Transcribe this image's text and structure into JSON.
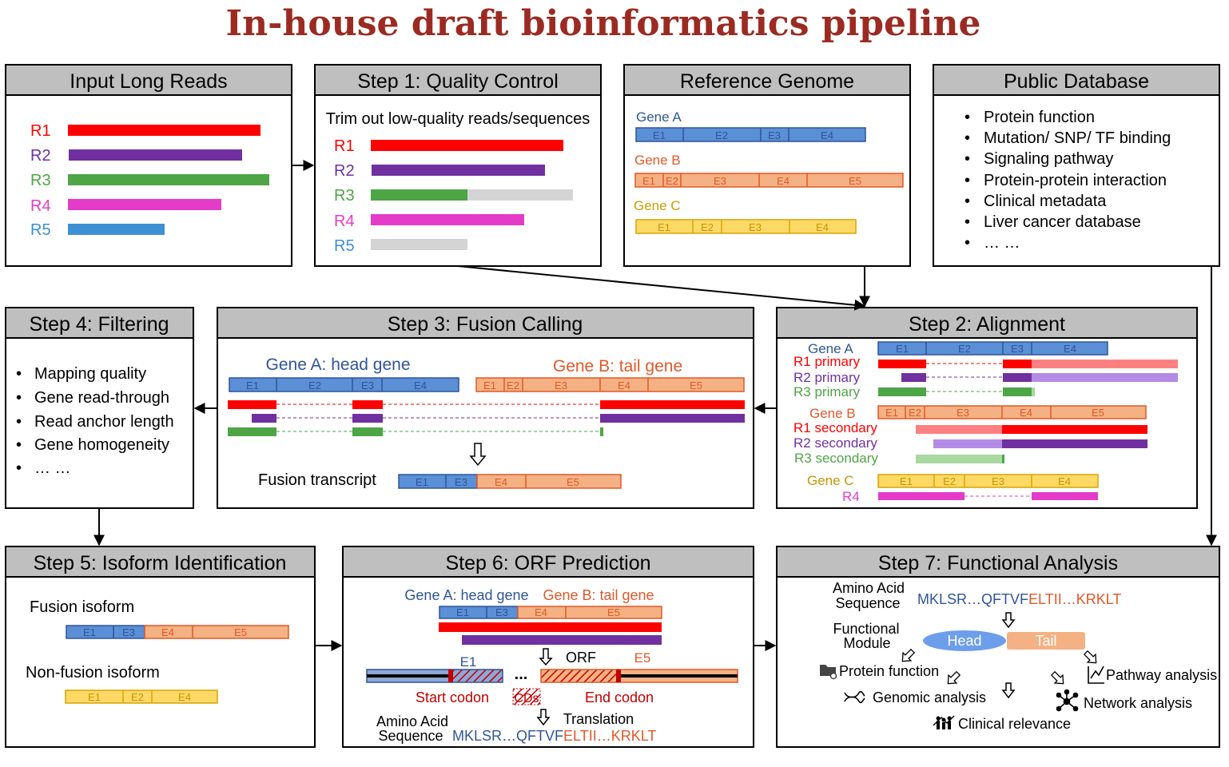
{
  "title": "In-house draft bioinformatics pipeline",
  "colors": {
    "title": "#9b2b22",
    "header_bg": "#bfbfbf",
    "red": "#ff0000",
    "purple": "#7030a0",
    "green": "#4ea546",
    "magenta": "#e43cc8",
    "blue": "#3f8fd4",
    "gray": "#d4d4d4",
    "geneA_fill": "#5b8fd6",
    "geneA_stroke": "#2f5597",
    "geneB_fill": "#f4b183",
    "geneB_stroke": "#e0592a",
    "geneC_fill": "#ffd966",
    "geneC_stroke": "#d9a400"
  },
  "boxes": {
    "input": {
      "header": "Input Long Reads",
      "reads": [
        "R1",
        "R2",
        "R3",
        "R4",
        "R5"
      ]
    },
    "qc": {
      "header": "Step 1: Quality Control",
      "subtitle": "Trim out low-quality reads/sequences",
      "reads": [
        "R1",
        "R2",
        "R3",
        "R4",
        "R5"
      ]
    },
    "ref": {
      "header": "Reference Genome",
      "genes": [
        {
          "name": "Gene A",
          "exons": [
            "E1",
            "E2",
            "E3",
            "E4"
          ]
        },
        {
          "name": "Gene B",
          "exons": [
            "E1",
            "E2",
            "E3",
            "E4",
            "E5"
          ]
        },
        {
          "name": "Gene C",
          "exons": [
            "E1",
            "E2",
            "E3",
            "E4"
          ]
        }
      ]
    },
    "db": {
      "header": "Public Database",
      "items": [
        "Protein function",
        "Mutation/ SNP/ TF binding",
        "Signaling pathway",
        "Protein-protein interaction",
        "Clinical metadata",
        "Liver cancer database",
        "… …"
      ]
    },
    "filter": {
      "header": "Step 4: Filtering",
      "items": [
        "Mapping quality",
        "Gene read-through",
        "Read anchor length",
        "Gene homogeneity",
        "… …"
      ]
    },
    "fusion": {
      "header": "Step 3: Fusion Calling",
      "head_label": "Gene A: head gene",
      "tail_label": "Gene B: tail gene",
      "head_exons": [
        "E1",
        "E2",
        "E3",
        "E4"
      ],
      "tail_exons": [
        "E1",
        "E2",
        "E3",
        "E4",
        "E5"
      ],
      "transcript_label": "Fusion transcript",
      "transcript_exons": [
        "E1",
        "E3",
        "E4",
        "E5"
      ]
    },
    "align": {
      "header": "Step 2: Alignment",
      "geneA": "Gene A",
      "geneB": "Gene B",
      "geneC": "Gene C",
      "geneA_exons": [
        "E1",
        "E2",
        "E3",
        "E4"
      ],
      "geneB_exons": [
        "E1",
        "E2",
        "E3",
        "E4",
        "E5"
      ],
      "geneC_exons": [
        "E1",
        "E2",
        "E3",
        "E4"
      ],
      "r1p": "R1 primary",
      "r2p": "R2 primary",
      "r3p": "R3 primary",
      "r1s": "R1 secondary",
      "r2s": "R2 secondary",
      "r3s": "R3 secondary",
      "r4": "R4"
    },
    "isoform": {
      "header": "Step 5: Isoform Identification",
      "fusion_label": "Fusion isoform",
      "nonfusion_label": "Non-fusion isoform",
      "fusion_exons": [
        "E1",
        "E3",
        "E4",
        "E5"
      ],
      "nonfusion_exons": [
        "E1",
        "E2",
        "E4"
      ]
    },
    "orf": {
      "header": "Step 6: ORF Prediction",
      "head_label": "Gene A: head gene",
      "tail_label": "Gene B: tail gene",
      "exons": [
        "E1",
        "E3",
        "E4",
        "E5"
      ],
      "e1": "E1",
      "dots": "...",
      "orf": "ORF",
      "e5": "E5",
      "start": "Start codon",
      "end": "End codon",
      "cds": "CDs",
      "translation": "Translation",
      "aa_label_1": "Amino Acid",
      "aa_label_2": "Sequence",
      "seq_head": "MKLSR…QFTVF",
      "seq_tail": "ELTII…KRKLT"
    },
    "func": {
      "header": "Step 7: Functional Analysis",
      "aa_label_1": "Amino Acid",
      "aa_label_2": "Sequence",
      "seq_head": "MKLSR…QFTVF",
      "seq_tail": "ELTII…KRKLT",
      "fm_1": "Functional",
      "fm_2": "Module",
      "head": "Head",
      "tail": "Tail",
      "protein": "Protein function",
      "pathway": "Pathway analysis",
      "genomic": "Genomic analysis",
      "network": "Network analysis",
      "clinical": "Clinical relevance"
    }
  }
}
